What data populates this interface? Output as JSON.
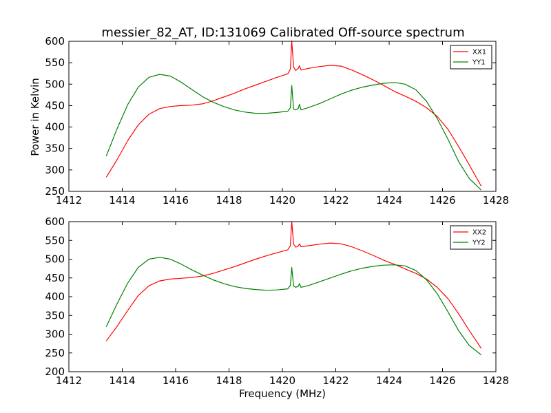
{
  "figure": {
    "title": "messier_82_AT, ID:131069 Calibrated Off-source spectrum",
    "xlabel": "Frequency (MHz)",
    "ylabel": "Power in Kelvin"
  },
  "chart_data": [
    {
      "type": "line",
      "xlim": [
        1412,
        1428
      ],
      "ylim": [
        250,
        600
      ],
      "xticks": [
        1412,
        1414,
        1416,
        1418,
        1420,
        1422,
        1424,
        1426,
        1428
      ],
      "yticks": [
        250,
        300,
        350,
        400,
        450,
        500,
        550,
        600
      ],
      "legend_position": "top-right",
      "series": [
        {
          "name": "XX1",
          "color": "#ff0000",
          "x": [
            1413.4,
            1413.8,
            1414.2,
            1414.6,
            1415.0,
            1415.4,
            1415.8,
            1416.2,
            1416.6,
            1417.0,
            1417.4,
            1417.8,
            1418.2,
            1418.6,
            1419.0,
            1419.4,
            1419.8,
            1420.2,
            1420.3,
            1420.35,
            1420.42,
            1420.5,
            1420.6,
            1420.64,
            1420.7,
            1421.0,
            1421.4,
            1421.8,
            1422.2,
            1422.6,
            1423.0,
            1423.4,
            1423.8,
            1424.2,
            1424.6,
            1425.0,
            1425.4,
            1425.8,
            1426.2,
            1426.6,
            1427.0,
            1427.45
          ],
          "y": [
            283,
            323,
            368,
            405,
            430,
            443,
            448,
            450,
            451,
            454,
            461,
            470,
            479,
            489,
            498,
            507,
            516,
            524,
            535,
            601,
            540,
            532,
            537,
            543,
            533,
            537,
            541,
            544,
            542,
            533,
            522,
            510,
            497,
            483,
            472,
            460,
            445,
            425,
            395,
            355,
            312,
            262
          ]
        },
        {
          "name": "YY1",
          "color": "#008000",
          "x": [
            1413.4,
            1413.8,
            1414.2,
            1414.6,
            1415.0,
            1415.4,
            1415.8,
            1416.2,
            1416.6,
            1417.0,
            1417.4,
            1417.8,
            1418.2,
            1418.6,
            1419.0,
            1419.4,
            1419.8,
            1420.2,
            1420.3,
            1420.35,
            1420.42,
            1420.5,
            1420.6,
            1420.64,
            1420.7,
            1421.0,
            1421.4,
            1421.8,
            1422.2,
            1422.6,
            1423.0,
            1423.4,
            1423.8,
            1424.2,
            1424.6,
            1425.0,
            1425.4,
            1425.8,
            1426.2,
            1426.6,
            1427.0,
            1427.45
          ],
          "y": [
            332,
            395,
            452,
            493,
            516,
            523,
            519,
            505,
            488,
            471,
            458,
            448,
            440,
            435,
            432,
            432,
            434,
            437,
            445,
            497,
            442,
            440,
            444,
            453,
            440,
            446,
            455,
            466,
            477,
            486,
            493,
            498,
            502,
            504,
            500,
            487,
            460,
            420,
            372,
            320,
            280,
            253
          ]
        }
      ]
    },
    {
      "type": "line",
      "xlim": [
        1412,
        1428
      ],
      "ylim": [
        200,
        600
      ],
      "xticks": [
        1412,
        1414,
        1416,
        1418,
        1420,
        1422,
        1424,
        1426,
        1428
      ],
      "yticks": [
        200,
        250,
        300,
        350,
        400,
        450,
        500,
        550,
        600
      ],
      "legend_position": "top-right",
      "series": [
        {
          "name": "XX2",
          "color": "#ff0000",
          "x": [
            1413.4,
            1413.8,
            1414.2,
            1414.6,
            1415.0,
            1415.4,
            1415.8,
            1416.2,
            1416.6,
            1417.0,
            1417.4,
            1417.8,
            1418.2,
            1418.6,
            1419.0,
            1419.4,
            1419.8,
            1420.2,
            1420.3,
            1420.35,
            1420.42,
            1420.5,
            1420.6,
            1420.64,
            1420.7,
            1421.0,
            1421.4,
            1421.8,
            1422.2,
            1422.6,
            1423.0,
            1423.4,
            1423.8,
            1424.2,
            1424.6,
            1425.0,
            1425.4,
            1425.8,
            1426.2,
            1426.6,
            1427.0,
            1427.45
          ],
          "y": [
            282,
            320,
            363,
            403,
            429,
            442,
            447,
            449,
            451,
            455,
            462,
            471,
            480,
            490,
            500,
            509,
            517,
            525,
            536,
            600,
            540,
            532,
            535,
            541,
            533,
            536,
            540,
            543,
            541,
            533,
            522,
            510,
            497,
            486,
            474,
            462,
            447,
            425,
            395,
            355,
            310,
            262
          ]
        },
        {
          "name": "YY2",
          "color": "#008000",
          "x": [
            1413.4,
            1413.8,
            1414.2,
            1414.6,
            1415.0,
            1415.4,
            1415.8,
            1416.2,
            1416.6,
            1417.0,
            1417.4,
            1417.8,
            1418.2,
            1418.6,
            1419.0,
            1419.4,
            1419.8,
            1420.2,
            1420.3,
            1420.35,
            1420.42,
            1420.5,
            1420.6,
            1420.64,
            1420.7,
            1421.0,
            1421.4,
            1421.8,
            1422.2,
            1422.6,
            1423.0,
            1423.4,
            1423.8,
            1424.2,
            1424.6,
            1425.0,
            1425.4,
            1425.8,
            1426.2,
            1426.6,
            1427.0,
            1427.45
          ],
          "y": [
            320,
            380,
            436,
            478,
            500,
            505,
            500,
            487,
            472,
            458,
            445,
            435,
            427,
            422,
            419,
            417,
            418,
            421,
            430,
            478,
            428,
            425,
            428,
            435,
            425,
            430,
            440,
            450,
            460,
            469,
            476,
            481,
            484,
            485,
            482,
            470,
            445,
            408,
            360,
            310,
            270,
            245
          ]
        }
      ]
    }
  ]
}
